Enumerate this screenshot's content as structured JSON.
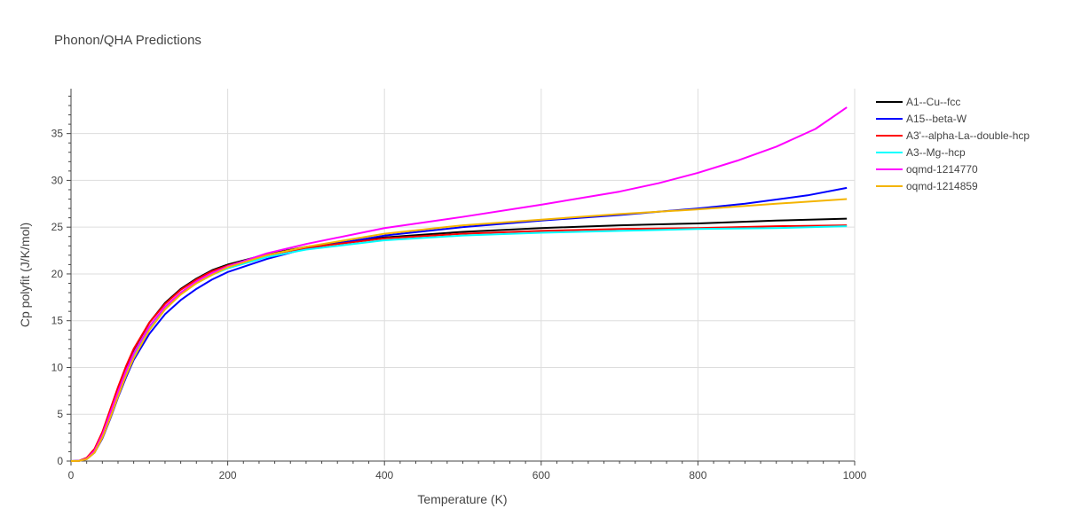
{
  "chart_data": {
    "type": "line",
    "title": "Phonon/QHA Predictions",
    "xlabel": "Temperature (K)",
    "ylabel": "Cp polyfit (J/K/mol)",
    "xlim": [
      0,
      1000
    ],
    "ylim": [
      0,
      39.8
    ],
    "xticks": [
      0,
      200,
      400,
      600,
      800,
      1000
    ],
    "yticks": [
      0,
      5,
      10,
      15,
      20,
      25,
      30,
      35
    ],
    "grid": true,
    "legend_position": "top-right",
    "series": [
      {
        "name": "A1--Cu--fcc",
        "color": "#000000",
        "points": [
          [
            0,
            0
          ],
          [
            10,
            0.02
          ],
          [
            20,
            0.3
          ],
          [
            30,
            1.2
          ],
          [
            40,
            3.0
          ],
          [
            50,
            5.4
          ],
          [
            60,
            7.8
          ],
          [
            70,
            10.0
          ],
          [
            80,
            11.9
          ],
          [
            100,
            14.8
          ],
          [
            120,
            16.9
          ],
          [
            140,
            18.4
          ],
          [
            160,
            19.5
          ],
          [
            180,
            20.4
          ],
          [
            200,
            21.0
          ],
          [
            250,
            22.1
          ],
          [
            300,
            22.9
          ],
          [
            400,
            23.9
          ],
          [
            500,
            24.5
          ],
          [
            600,
            24.9
          ],
          [
            700,
            25.2
          ],
          [
            800,
            25.4
          ],
          [
            900,
            25.7
          ],
          [
            990,
            25.9
          ]
        ]
      },
      {
        "name": "A15--beta-W",
        "color": "#0000ff",
        "points": [
          [
            0,
            0
          ],
          [
            10,
            0.01
          ],
          [
            20,
            0.2
          ],
          [
            30,
            0.9
          ],
          [
            40,
            2.4
          ],
          [
            50,
            4.5
          ],
          [
            60,
            6.8
          ],
          [
            70,
            8.9
          ],
          [
            80,
            10.8
          ],
          [
            100,
            13.6
          ],
          [
            120,
            15.7
          ],
          [
            140,
            17.2
          ],
          [
            160,
            18.4
          ],
          [
            180,
            19.4
          ],
          [
            200,
            20.2
          ],
          [
            250,
            21.6
          ],
          [
            300,
            22.7
          ],
          [
            400,
            24.1
          ],
          [
            500,
            25.0
          ],
          [
            600,
            25.7
          ],
          [
            700,
            26.3
          ],
          [
            800,
            27.0
          ],
          [
            860,
            27.5
          ],
          [
            940,
            28.4
          ],
          [
            990,
            29.2
          ]
        ]
      },
      {
        "name": "A3'--alpha-La--double-hcp",
        "color": "#ff0000",
        "points": [
          [
            0,
            0
          ],
          [
            10,
            0.03
          ],
          [
            20,
            0.35
          ],
          [
            30,
            1.3
          ],
          [
            40,
            3.1
          ],
          [
            50,
            5.5
          ],
          [
            60,
            7.9
          ],
          [
            70,
            10.1
          ],
          [
            80,
            12.0
          ],
          [
            100,
            14.8
          ],
          [
            120,
            16.8
          ],
          [
            140,
            18.3
          ],
          [
            160,
            19.4
          ],
          [
            180,
            20.3
          ],
          [
            200,
            20.9
          ],
          [
            250,
            22.0
          ],
          [
            300,
            22.8
          ],
          [
            400,
            23.8
          ],
          [
            500,
            24.3
          ],
          [
            600,
            24.6
          ],
          [
            700,
            24.8
          ],
          [
            800,
            24.9
          ],
          [
            900,
            25.1
          ],
          [
            990,
            25.2
          ]
        ]
      },
      {
        "name": "A3--Mg--hcp",
        "color": "#00ffff",
        "points": [
          [
            0,
            0
          ],
          [
            10,
            0.02
          ],
          [
            20,
            0.25
          ],
          [
            30,
            1.0
          ],
          [
            40,
            2.7
          ],
          [
            50,
            4.9
          ],
          [
            60,
            7.2
          ],
          [
            70,
            9.4
          ],
          [
            80,
            11.3
          ],
          [
            100,
            14.2
          ],
          [
            120,
            16.3
          ],
          [
            140,
            17.9
          ],
          [
            160,
            19.0
          ],
          [
            180,
            19.9
          ],
          [
            200,
            20.6
          ],
          [
            250,
            21.8
          ],
          [
            300,
            22.6
          ],
          [
            400,
            23.6
          ],
          [
            500,
            24.1
          ],
          [
            600,
            24.4
          ],
          [
            700,
            24.6
          ],
          [
            800,
            24.8
          ],
          [
            900,
            24.9
          ],
          [
            990,
            25.1
          ]
        ]
      },
      {
        "name": "oqmd-1214770",
        "color": "#ff00ff",
        "points": [
          [
            0,
            0
          ],
          [
            10,
            0.02
          ],
          [
            20,
            0.25
          ],
          [
            30,
            1.1
          ],
          [
            40,
            2.8
          ],
          [
            50,
            5.1
          ],
          [
            60,
            7.4
          ],
          [
            70,
            9.6
          ],
          [
            80,
            11.5
          ],
          [
            100,
            14.4
          ],
          [
            120,
            16.5
          ],
          [
            140,
            18.0
          ],
          [
            160,
            19.2
          ],
          [
            180,
            20.1
          ],
          [
            200,
            20.8
          ],
          [
            250,
            22.2
          ],
          [
            300,
            23.2
          ],
          [
            400,
            24.9
          ],
          [
            500,
            26.1
          ],
          [
            600,
            27.4
          ],
          [
            700,
            28.8
          ],
          [
            750,
            29.7
          ],
          [
            800,
            30.8
          ],
          [
            850,
            32.1
          ],
          [
            900,
            33.6
          ],
          [
            950,
            35.5
          ],
          [
            990,
            37.8
          ]
        ]
      },
      {
        "name": "oqmd-1214859",
        "color": "#f4b400",
        "points": [
          [
            0,
            0
          ],
          [
            10,
            0.01
          ],
          [
            20,
            0.2
          ],
          [
            30,
            0.9
          ],
          [
            40,
            2.5
          ],
          [
            50,
            4.6
          ],
          [
            60,
            6.9
          ],
          [
            70,
            9.1
          ],
          [
            80,
            11.0
          ],
          [
            100,
            14.0
          ],
          [
            120,
            16.2
          ],
          [
            140,
            17.8
          ],
          [
            160,
            19.0
          ],
          [
            180,
            19.9
          ],
          [
            200,
            20.7
          ],
          [
            250,
            22.0
          ],
          [
            300,
            22.9
          ],
          [
            400,
            24.3
          ],
          [
            500,
            25.2
          ],
          [
            600,
            25.8
          ],
          [
            700,
            26.4
          ],
          [
            800,
            26.9
          ],
          [
            900,
            27.5
          ],
          [
            990,
            28.0
          ]
        ]
      }
    ]
  }
}
